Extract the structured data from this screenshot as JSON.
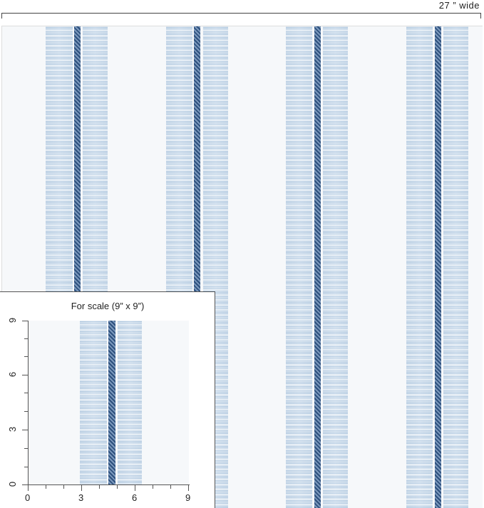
{
  "width_label": "27 ” wide",
  "inset": {
    "title": "For scale (9” x 9”)",
    "x_ticks": [
      "0",
      "3",
      "6",
      "9"
    ],
    "y_ticks": [
      "0",
      "3",
      "6",
      "9"
    ]
  },
  "colors": {
    "background": "#f6f8fa",
    "stripe": "#b3cbe1",
    "dark_band": "#3a5f8c"
  }
}
